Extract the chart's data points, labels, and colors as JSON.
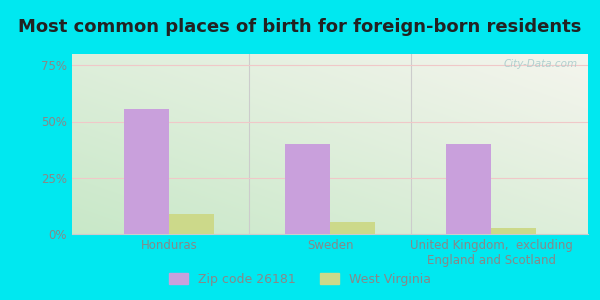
{
  "title": "Most common places of birth for foreign-born residents",
  "categories": [
    "Honduras",
    "Sweden",
    "United Kingdom,  excluding\nEngland and Scotland"
  ],
  "zip_values": [
    0.555,
    0.4,
    0.4
  ],
  "wv_values": [
    0.09,
    0.055,
    0.025
  ],
  "zip_color": "#c9a0dc",
  "wv_color": "#ccd98a",
  "background_outer": "#00e8f0",
  "background_inner_topleft": "#d8eed8",
  "background_inner_topright": "#f0f0e8",
  "background_inner_bottom": "#c8e8c8",
  "yticks": [
    0.0,
    0.25,
    0.5,
    0.75
  ],
  "ytick_labels": [
    "0%",
    "25%",
    "50%",
    "75%"
  ],
  "ylim": [
    0,
    0.8
  ],
  "bar_width": 0.28,
  "legend_label_zip": "Zip code 26181",
  "legend_label_wv": "West Virginia",
  "title_fontsize": 13,
  "tick_fontsize": 8.5,
  "label_fontsize": 8.5,
  "legend_fontsize": 9,
  "tick_color": "#888888",
  "label_color": "#888888"
}
